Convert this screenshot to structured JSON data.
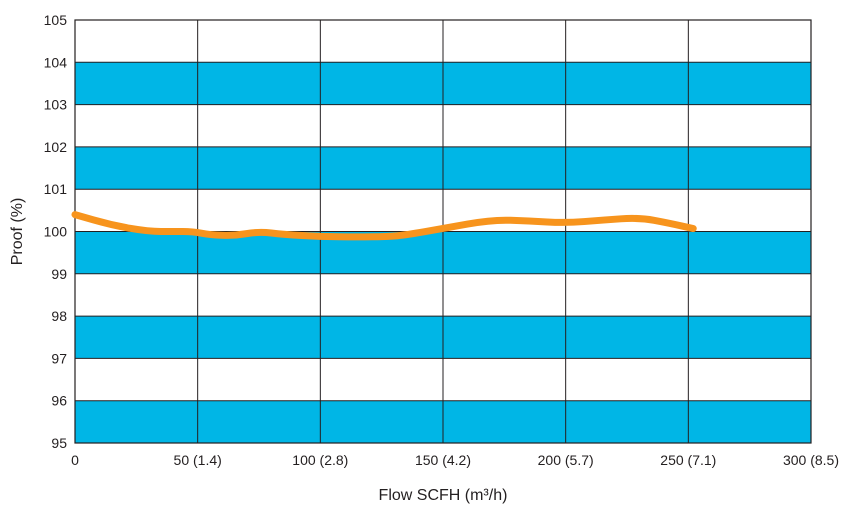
{
  "chart_data": {
    "type": "line",
    "xlabel": "Flow SCFH (m³/h)",
    "ylabel": "Proof (%)",
    "xlim": [
      0,
      300
    ],
    "ylim": [
      95,
      105
    ],
    "grid": true,
    "band_color": "#00b6e6",
    "band_ranges": [
      [
        103,
        104
      ],
      [
        101,
        102
      ],
      [
        99,
        100
      ],
      [
        97,
        98
      ],
      [
        95,
        96
      ]
    ],
    "line_color": "#f7941d",
    "x_ticks": [
      {
        "value": 0,
        "label": "0"
      },
      {
        "value": 50,
        "label": "50 (1.4)"
      },
      {
        "value": 100,
        "label": "100 (2.8)"
      },
      {
        "value": 150,
        "label": "150 (4.2)"
      },
      {
        "value": 200,
        "label": "200 (5.7)"
      },
      {
        "value": 250,
        "label": "250 (7.1)"
      },
      {
        "value": 300,
        "label": "300 (8.5)"
      }
    ],
    "y_ticks": [
      {
        "value": 95,
        "label": "95"
      },
      {
        "value": 96,
        "label": "96"
      },
      {
        "value": 97,
        "label": "97"
      },
      {
        "value": 98,
        "label": "98"
      },
      {
        "value": 99,
        "label": "99"
      },
      {
        "value": 100,
        "label": "100"
      },
      {
        "value": 101,
        "label": "101"
      },
      {
        "value": 102,
        "label": "102"
      },
      {
        "value": 103,
        "label": "103"
      },
      {
        "value": 104,
        "label": "104"
      },
      {
        "value": 105,
        "label": "105"
      }
    ],
    "series": [
      {
        "x": [
          0,
          15,
          30,
          40,
          48,
          55,
          65,
          75,
          85,
          100,
          115,
          128,
          135,
          150,
          170,
          185,
          200,
          215,
          230,
          242,
          252
        ],
        "y": [
          100.4,
          100.15,
          100.0,
          100.0,
          100.0,
          99.92,
          99.9,
          100.0,
          99.93,
          99.88,
          99.87,
          99.88,
          99.92,
          100.07,
          100.28,
          100.25,
          100.2,
          100.27,
          100.33,
          100.2,
          100.07
        ]
      }
    ]
  }
}
